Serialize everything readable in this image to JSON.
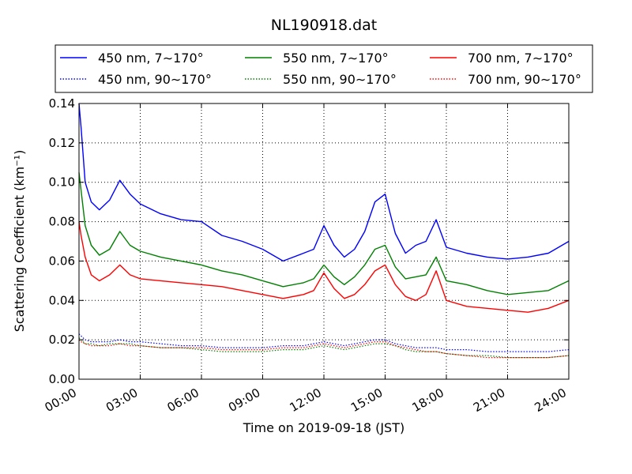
{
  "chart_data": {
    "type": "line",
    "title": "NL190918.dat",
    "xlabel": "Time on 2019-09-18 (JST)",
    "ylabel": "Scattering Coefficient (km⁻¹)",
    "xlim": [
      0,
      24
    ],
    "ylim": [
      0,
      0.14
    ],
    "x_ticks": [
      0,
      3,
      6,
      9,
      12,
      15,
      18,
      21,
      24
    ],
    "x_tick_labels": [
      "00:00",
      "03:00",
      "06:00",
      "09:00",
      "12:00",
      "15:00",
      "18:00",
      "21:00",
      "24:00"
    ],
    "y_ticks": [
      0,
      0.02,
      0.04,
      0.06,
      0.08,
      0.1,
      0.12,
      0.14
    ],
    "y_tick_labels": [
      "0.00",
      "0.02",
      "0.04",
      "0.06",
      "0.08",
      "0.10",
      "0.12",
      "0.14"
    ],
    "grid": true,
    "legend_position": "top, above plot",
    "x": [
      0,
      0.1,
      0.3,
      0.6,
      1.0,
      1.5,
      2.0,
      2.5,
      3.0,
      4.0,
      5.0,
      6.0,
      7.0,
      8.0,
      9.0,
      10.0,
      11.0,
      11.5,
      12.0,
      12.5,
      13.0,
      13.5,
      14.0,
      14.5,
      15.0,
      15.5,
      16.0,
      16.5,
      17.0,
      17.5,
      18.0,
      19.0,
      20.0,
      21.0,
      22.0,
      23.0,
      24.0
    ],
    "series": [
      {
        "name": "450 nm, 7∼170°",
        "color": "#0000ff",
        "style": "solid",
        "values": [
          0.14,
          0.128,
          0.1,
          0.09,
          0.086,
          0.091,
          0.101,
          0.094,
          0.089,
          0.084,
          0.081,
          0.08,
          0.073,
          0.07,
          0.066,
          0.06,
          0.064,
          0.066,
          0.078,
          0.068,
          0.062,
          0.066,
          0.075,
          0.09,
          0.094,
          0.074,
          0.064,
          0.068,
          0.07,
          0.081,
          0.067,
          0.064,
          0.062,
          0.061,
          0.062,
          0.064,
          0.07
        ]
      },
      {
        "name": "550 nm, 7∼170°",
        "color": "#008000",
        "style": "solid",
        "values": [
          0.105,
          0.096,
          0.078,
          0.068,
          0.063,
          0.066,
          0.075,
          0.068,
          0.065,
          0.062,
          0.06,
          0.058,
          0.055,
          0.053,
          0.05,
          0.047,
          0.049,
          0.051,
          0.058,
          0.052,
          0.048,
          0.052,
          0.058,
          0.066,
          0.068,
          0.057,
          0.051,
          0.052,
          0.053,
          0.062,
          0.05,
          0.048,
          0.045,
          0.043,
          0.044,
          0.045,
          0.05
        ]
      },
      {
        "name": "700 nm, 7∼170°",
        "color": "#ff0000",
        "style": "solid",
        "values": [
          0.08,
          0.073,
          0.062,
          0.053,
          0.05,
          0.053,
          0.058,
          0.053,
          0.051,
          0.05,
          0.049,
          0.048,
          0.047,
          0.045,
          0.043,
          0.041,
          0.043,
          0.045,
          0.054,
          0.046,
          0.041,
          0.043,
          0.048,
          0.055,
          0.058,
          0.048,
          0.042,
          0.04,
          0.043,
          0.055,
          0.04,
          0.037,
          0.036,
          0.035,
          0.034,
          0.036,
          0.04
        ]
      },
      {
        "name": "450 nm, 90∼170°",
        "color": "#0000ff",
        "style": "dotted",
        "values": [
          0.023,
          0.022,
          0.02,
          0.019,
          0.019,
          0.019,
          0.02,
          0.019,
          0.019,
          0.018,
          0.017,
          0.017,
          0.016,
          0.016,
          0.016,
          0.017,
          0.017,
          0.018,
          0.019,
          0.018,
          0.017,
          0.018,
          0.019,
          0.02,
          0.02,
          0.018,
          0.017,
          0.016,
          0.016,
          0.016,
          0.015,
          0.015,
          0.014,
          0.014,
          0.014,
          0.014,
          0.015
        ]
      },
      {
        "name": "550 nm, 90∼170°",
        "color": "#008000",
        "style": "dotted",
        "values": [
          0.021,
          0.02,
          0.018,
          0.018,
          0.017,
          0.018,
          0.018,
          0.018,
          0.017,
          0.016,
          0.016,
          0.015,
          0.014,
          0.014,
          0.014,
          0.015,
          0.015,
          0.016,
          0.017,
          0.016,
          0.015,
          0.016,
          0.017,
          0.018,
          0.018,
          0.017,
          0.015,
          0.014,
          0.014,
          0.014,
          0.013,
          0.012,
          0.012,
          0.011,
          0.011,
          0.011,
          0.012
        ]
      },
      {
        "name": "700 nm, 90∼170°",
        "color": "#ff0000",
        "style": "dotted",
        "values": [
          0.02,
          0.019,
          0.018,
          0.017,
          0.017,
          0.017,
          0.018,
          0.017,
          0.017,
          0.016,
          0.016,
          0.016,
          0.015,
          0.015,
          0.015,
          0.016,
          0.016,
          0.017,
          0.018,
          0.017,
          0.016,
          0.017,
          0.018,
          0.019,
          0.019,
          0.017,
          0.016,
          0.015,
          0.014,
          0.014,
          0.013,
          0.012,
          0.011,
          0.011,
          0.011,
          0.011,
          0.012
        ]
      }
    ]
  }
}
